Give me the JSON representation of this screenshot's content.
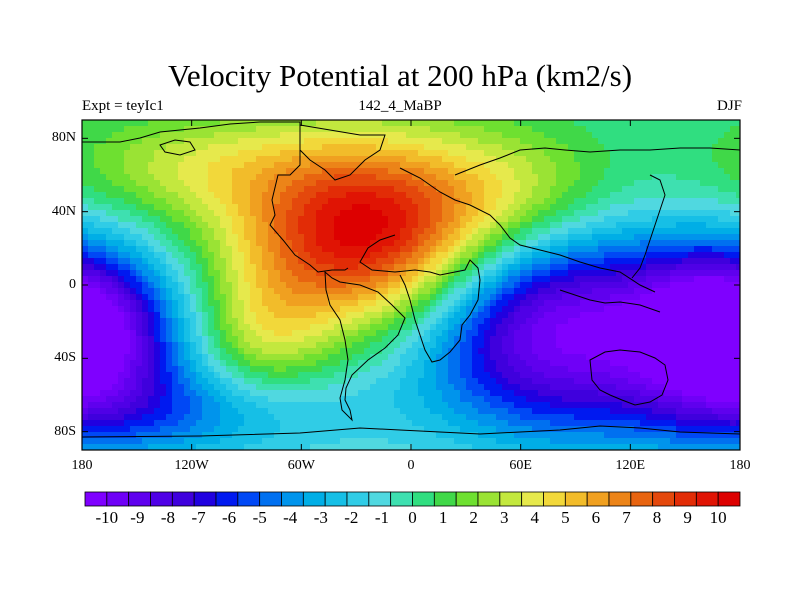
{
  "title": "Velocity Potential at 200 hPa (km2/s)",
  "subtitle_left": "Expt = teyIc1",
  "subtitle_center": "142_4_MaBP",
  "subtitle_right": "DJF",
  "map": {
    "lon_range": [
      -180,
      180
    ],
    "lat_range": [
      -90,
      90
    ],
    "y_ticks": [
      {
        "label": "80N",
        "lat": 80
      },
      {
        "label": "40N",
        "lat": 40
      },
      {
        "label": "0",
        "lat": 0
      },
      {
        "label": "40S",
        "lat": -40
      },
      {
        "label": "80S",
        "lat": -80
      }
    ],
    "x_ticks": [
      {
        "label": "180",
        "lon": -180
      },
      {
        "label": "120W",
        "lon": -120
      },
      {
        "label": "60W",
        "lon": -60
      },
      {
        "label": "0",
        "lon": 0
      },
      {
        "label": "60E",
        "lon": 60
      },
      {
        "label": "120E",
        "lon": 120
      },
      {
        "label": "180",
        "lon": 180
      }
    ],
    "field_centers": [
      {
        "lon": -25,
        "lat": 28,
        "value": 11,
        "rlon": 50,
        "rlat": 36
      },
      {
        "lon": 80,
        "lat": -25,
        "value": -10.5,
        "rlon": 55,
        "rlat": 40
      },
      {
        "lon": -170,
        "lat": -25,
        "value": -8,
        "rlon": 35,
        "rlat": 32
      },
      {
        "lon": 160,
        "lat": -25,
        "value": -6,
        "rlon": 30,
        "rlat": 30
      },
      {
        "lon": 60,
        "lat": 50,
        "value": 3,
        "rlon": 40,
        "rlat": 25
      },
      {
        "lon": -120,
        "lat": 65,
        "value": 3,
        "rlon": 50,
        "rlat": 20
      },
      {
        "lon": -80,
        "lat": -30,
        "value": 3,
        "rlon": 25,
        "rlat": 25
      },
      {
        "lon": -130,
        "lat": -70,
        "value": -4,
        "rlon": 70,
        "rlat": 20
      }
    ]
  },
  "colorbar": {
    "colors": [
      "#7f00ff",
      "#6f00f7",
      "#5f00ee",
      "#4f00e6",
      "#3f00dd",
      "#2000e0",
      "#0019f0",
      "#0048f5",
      "#0070f0",
      "#0094ec",
      "#00aee6",
      "#16bfe6",
      "#30cce6",
      "#50d8e0",
      "#3ee0b0",
      "#30de80",
      "#40d848",
      "#6ee030",
      "#9ae334",
      "#c3e83e",
      "#e6e94c",
      "#f2d83a",
      "#f2bc2a",
      "#f0a020",
      "#ec8418",
      "#e86410",
      "#e4480c",
      "#e22c06",
      "#e01404",
      "#dd0000"
    ],
    "labels": [
      "-10",
      "-9",
      "-8",
      "-7",
      "-6",
      "-5",
      "-4",
      "-3",
      "-2",
      "-1",
      "0",
      "1",
      "2",
      "3",
      "4",
      "5",
      "6",
      "7",
      "8",
      "9",
      "10"
    ]
  }
}
